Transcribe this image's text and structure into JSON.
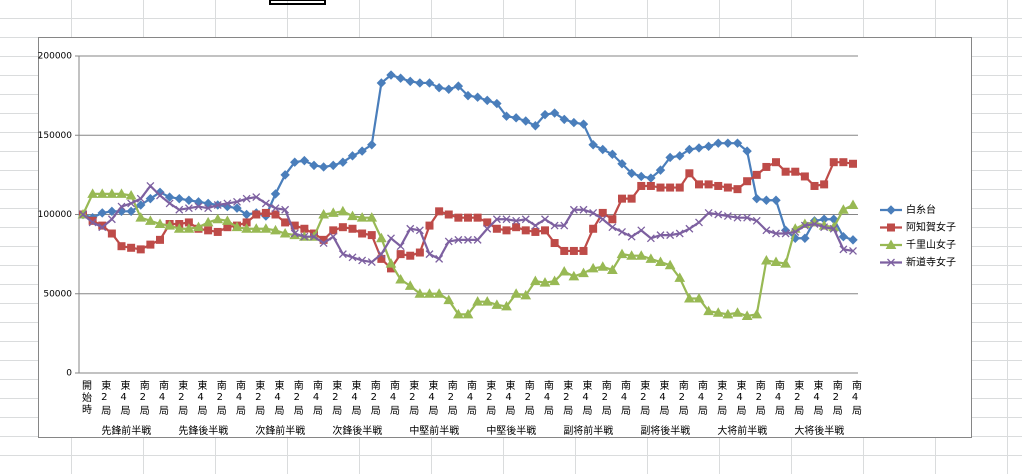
{
  "chart_data": {
    "type": "line",
    "categories": [
      "開始時",
      null,
      "東2局",
      null,
      "東4局",
      null,
      "南2局",
      null,
      "南4局",
      null,
      "東2局",
      null,
      "東4局",
      null,
      "南2局",
      null,
      "南4局",
      null,
      "東2局",
      null,
      "東4局",
      null,
      "南2局",
      null,
      "南4局",
      null,
      "東2局",
      null,
      "東4局",
      null,
      "南2局",
      null,
      "南4局",
      null,
      "東2局",
      null,
      "東4局",
      null,
      "南2局",
      null,
      "南4局",
      null,
      "東2局",
      null,
      "東4局",
      null,
      "南2局",
      null,
      "南4局",
      null,
      "東2局",
      null,
      "東4局",
      null,
      "南2局",
      null,
      "南4局",
      null,
      "東2局",
      null,
      "東4局",
      null,
      "南2局",
      null,
      "南4局",
      null,
      "東2局",
      null,
      "東4局",
      null,
      "南2局",
      null,
      "南4局",
      null,
      "東2局",
      null,
      "東4局",
      null,
      "南2局",
      null,
      "南4局"
    ],
    "groups": [
      "先鋒前半戦",
      "先鋒後半戦",
      "次鋒前半戦",
      "次鋒後半戦",
      "中堅前半戦",
      "中堅後半戦",
      "副将前半戦",
      "副将後半戦",
      "大将前半戦",
      "大将後半戦"
    ],
    "series": [
      {
        "name": "白糸台",
        "color": "#4a7ebb",
        "marker": "diamond",
        "values": [
          100000,
          98000,
          101000,
          102000,
          102000,
          102000,
          106000,
          110000,
          114000,
          111000,
          110000,
          109000,
          108000,
          107000,
          106000,
          105000,
          104000,
          100000,
          101000,
          99000,
          113000,
          125000,
          133000,
          134000,
          131000,
          130000,
          131000,
          133000,
          137000,
          140000,
          144000,
          183000,
          188000,
          186000,
          184000,
          183000,
          183000,
          180000,
          179000,
          181000,
          175000,
          174000,
          172000,
          170000,
          162000,
          161000,
          159000,
          156000,
          163000,
          164000,
          160000,
          158000,
          157000,
          144000,
          141000,
          138000,
          132000,
          126000,
          124000,
          123000,
          128000,
          136000,
          137000,
          141000,
          142000,
          143000,
          145000,
          145000,
          145000,
          140000,
          110000,
          109000,
          109000,
          90000,
          85000,
          85000,
          96000,
          97000,
          97000,
          86000,
          84000
        ]
      },
      {
        "name": "阿知賀女子",
        "color": "#be4b48",
        "marker": "square",
        "values": [
          100000,
          96000,
          93000,
          88000,
          80000,
          79000,
          78000,
          81000,
          84000,
          94000,
          94000,
          95000,
          91000,
          90000,
          89000,
          92000,
          93000,
          95000,
          100000,
          101000,
          100000,
          95000,
          93000,
          91000,
          88000,
          84000,
          90000,
          92000,
          91000,
          88000,
          87000,
          72000,
          66000,
          75000,
          74000,
          76000,
          93000,
          102000,
          100000,
          98000,
          98000,
          98000,
          95000,
          91000,
          90000,
          92000,
          90000,
          89000,
          90000,
          82000,
          77000,
          77000,
          77000,
          91000,
          101000,
          97000,
          110000,
          110000,
          118000,
          118000,
          117000,
          117000,
          117000,
          126000,
          119000,
          119000,
          118000,
          117000,
          116000,
          121000,
          125000,
          130000,
          133000,
          127000,
          127000,
          124000,
          118000,
          119000,
          133000,
          133000,
          132000
        ]
      },
      {
        "name": "千里山女子",
        "color": "#98b954",
        "marker": "triangle",
        "values": [
          100000,
          113000,
          113000,
          113000,
          113000,
          112000,
          98000,
          96000,
          94000,
          93000,
          91000,
          91000,
          92000,
          95000,
          97000,
          96000,
          92000,
          91000,
          91000,
          91000,
          90000,
          88000,
          87000,
          86000,
          86000,
          100000,
          101000,
          102000,
          99000,
          98000,
          98000,
          85000,
          69000,
          59000,
          55000,
          50000,
          50000,
          50000,
          46000,
          37000,
          37000,
          45000,
          45000,
          43000,
          42000,
          50000,
          49000,
          58000,
          57000,
          58000,
          64000,
          61000,
          63000,
          66000,
          67000,
          65000,
          75000,
          74000,
          74000,
          72000,
          70000,
          68000,
          60000,
          47000,
          47000,
          39000,
          38000,
          37000,
          38000,
          36000,
          37000,
          71000,
          70000,
          69000,
          91000,
          94000,
          95000,
          93000,
          92000,
          103000,
          106000
        ]
      },
      {
        "name": "新道寺女子",
        "color": "#7d60a0",
        "marker": "x",
        "values": [
          100000,
          95000,
          92000,
          97000,
          105000,
          107000,
          110000,
          118000,
          112000,
          107000,
          103000,
          104000,
          105000,
          104000,
          106000,
          107000,
          108000,
          110000,
          111000,
          107000,
          104000,
          103000,
          88000,
          86000,
          86000,
          82000,
          86000,
          75000,
          73000,
          71000,
          70000,
          75000,
          85000,
          80000,
          91000,
          90000,
          75000,
          72000,
          83000,
          84000,
          84000,
          84000,
          91000,
          97000,
          97000,
          96000,
          97000,
          93000,
          97000,
          93000,
          93000,
          103000,
          103000,
          101000,
          97000,
          92000,
          89000,
          86000,
          90000,
          85000,
          87000,
          87000,
          88000,
          91000,
          95000,
          101000,
          100000,
          99000,
          98000,
          98000,
          96000,
          90000,
          88000,
          88000,
          89000,
          93000,
          94000,
          92000,
          91000,
          78000,
          77000
        ]
      }
    ],
    "ylim": [
      0,
      200000
    ],
    "yticks": [
      0,
      50000,
      100000,
      150000,
      200000
    ],
    "grid": true,
    "legend": "right"
  }
}
